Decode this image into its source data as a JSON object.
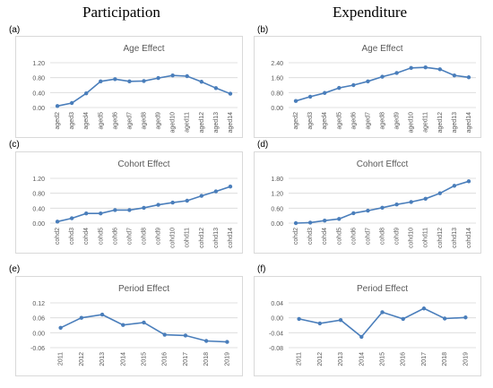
{
  "columns": [
    "Participation",
    "Expenditure"
  ],
  "chart_data": [
    {
      "panel": "(a)",
      "type": "line",
      "title": "Age Effect",
      "categories": [
        "aged2",
        "aged3",
        "aged4",
        "aged5",
        "aged6",
        "aged7",
        "aged8",
        "aged9",
        "aged10",
        "aged11",
        "aged12",
        "aged13",
        "aged14"
      ],
      "values": [
        0.04,
        0.12,
        0.38,
        0.7,
        0.76,
        0.7,
        0.71,
        0.79,
        0.86,
        0.84,
        0.69,
        0.52,
        0.37
      ],
      "ylim": [
        0,
        1.2
      ],
      "yticks": [
        "0.00",
        "0.40",
        "0.80",
        "1.20"
      ],
      "ytick_values": [
        0,
        0.4,
        0.8,
        1.2
      ],
      "color": "#4a7ebb",
      "grid": true
    },
    {
      "panel": "(b)",
      "type": "line",
      "title": "Age Effect",
      "categories": [
        "aged2",
        "aged3",
        "aged4",
        "aged5",
        "aged6",
        "aged7",
        "aged8",
        "aged9",
        "aged10",
        "aged11",
        "aged12",
        "aged13",
        "aged14"
      ],
      "values": [
        0.35,
        0.58,
        0.78,
        1.05,
        1.2,
        1.4,
        1.65,
        1.85,
        2.12,
        2.15,
        2.05,
        1.72,
        1.62
      ],
      "ylim": [
        0,
        2.4
      ],
      "yticks": [
        "0.00",
        "0.80",
        "1.60",
        "2.40"
      ],
      "ytick_values": [
        0,
        0.8,
        1.6,
        2.4
      ],
      "color": "#4a7ebb",
      "grid": true
    },
    {
      "panel": "(c)",
      "type": "line",
      "title": "Cohort Effect",
      "categories": [
        "cohd2",
        "cohd3",
        "cohd4",
        "cohd5",
        "cohd6",
        "cohd7",
        "cohd8",
        "cohd9",
        "cohd10",
        "cohd11",
        "cohd12",
        "cohd13",
        "cohd14"
      ],
      "values": [
        0.04,
        0.13,
        0.26,
        0.26,
        0.35,
        0.35,
        0.41,
        0.49,
        0.55,
        0.6,
        0.73,
        0.85,
        0.98
      ],
      "ylim": [
        0,
        1.2
      ],
      "yticks": [
        "0.00",
        "0.40",
        "0.80",
        "1.20"
      ],
      "ytick_values": [
        0,
        0.4,
        0.8,
        1.2
      ],
      "color": "#4a7ebb",
      "grid": true
    },
    {
      "panel": "(d)",
      "type": "line",
      "title": "Cohort Effcct",
      "categories": [
        "cohd2",
        "cohd3",
        "cohd4",
        "cohd5",
        "cohd6",
        "cohd7",
        "cohd8",
        "cohd9",
        "cohd10",
        "cohd11",
        "cohd12",
        "cohd13",
        "cohd14"
      ],
      "values": [
        0.0,
        0.02,
        0.1,
        0.17,
        0.4,
        0.5,
        0.62,
        0.75,
        0.85,
        0.98,
        1.2,
        1.5,
        1.68
      ],
      "ylim": [
        0,
        1.8
      ],
      "yticks": [
        "0.00",
        "0.60",
        "1.20",
        "1.80"
      ],
      "ytick_values": [
        0,
        0.6,
        1.2,
        1.8
      ],
      "color": "#4a7ebb",
      "grid": true
    },
    {
      "panel": "(e)",
      "type": "line",
      "title": "Period Effect",
      "categories": [
        "2011",
        "2012",
        "2013",
        "2014",
        "2015",
        "2016",
        "2017",
        "2018",
        "2019"
      ],
      "values": [
        0.02,
        0.06,
        0.073,
        0.031,
        0.041,
        -0.008,
        -0.011,
        -0.033,
        -0.037
      ],
      "ylim": [
        -0.06,
        0.12
      ],
      "yticks": [
        "-0.06",
        "0.00",
        "0.06",
        "0.12"
      ],
      "ytick_values": [
        -0.06,
        0.0,
        0.06,
        0.12
      ],
      "color": "#4a7ebb",
      "grid": true
    },
    {
      "panel": "(f)",
      "type": "line",
      "title": "Period Effect",
      "categories": [
        "2011",
        "2012",
        "2013",
        "2014",
        "2015",
        "2016",
        "2017",
        "2018",
        "2019"
      ],
      "values": [
        -0.003,
        -0.015,
        -0.006,
        -0.051,
        0.015,
        -0.003,
        0.025,
        -0.002,
        0.001
      ],
      "ylim": [
        -0.08,
        0.04
      ],
      "yticks": [
        "-0.08",
        "-0.04",
        "0.00",
        "0.04"
      ],
      "ytick_values": [
        -0.08,
        -0.04,
        0.0,
        0.04
      ],
      "color": "#4a7ebb",
      "grid": true
    }
  ]
}
